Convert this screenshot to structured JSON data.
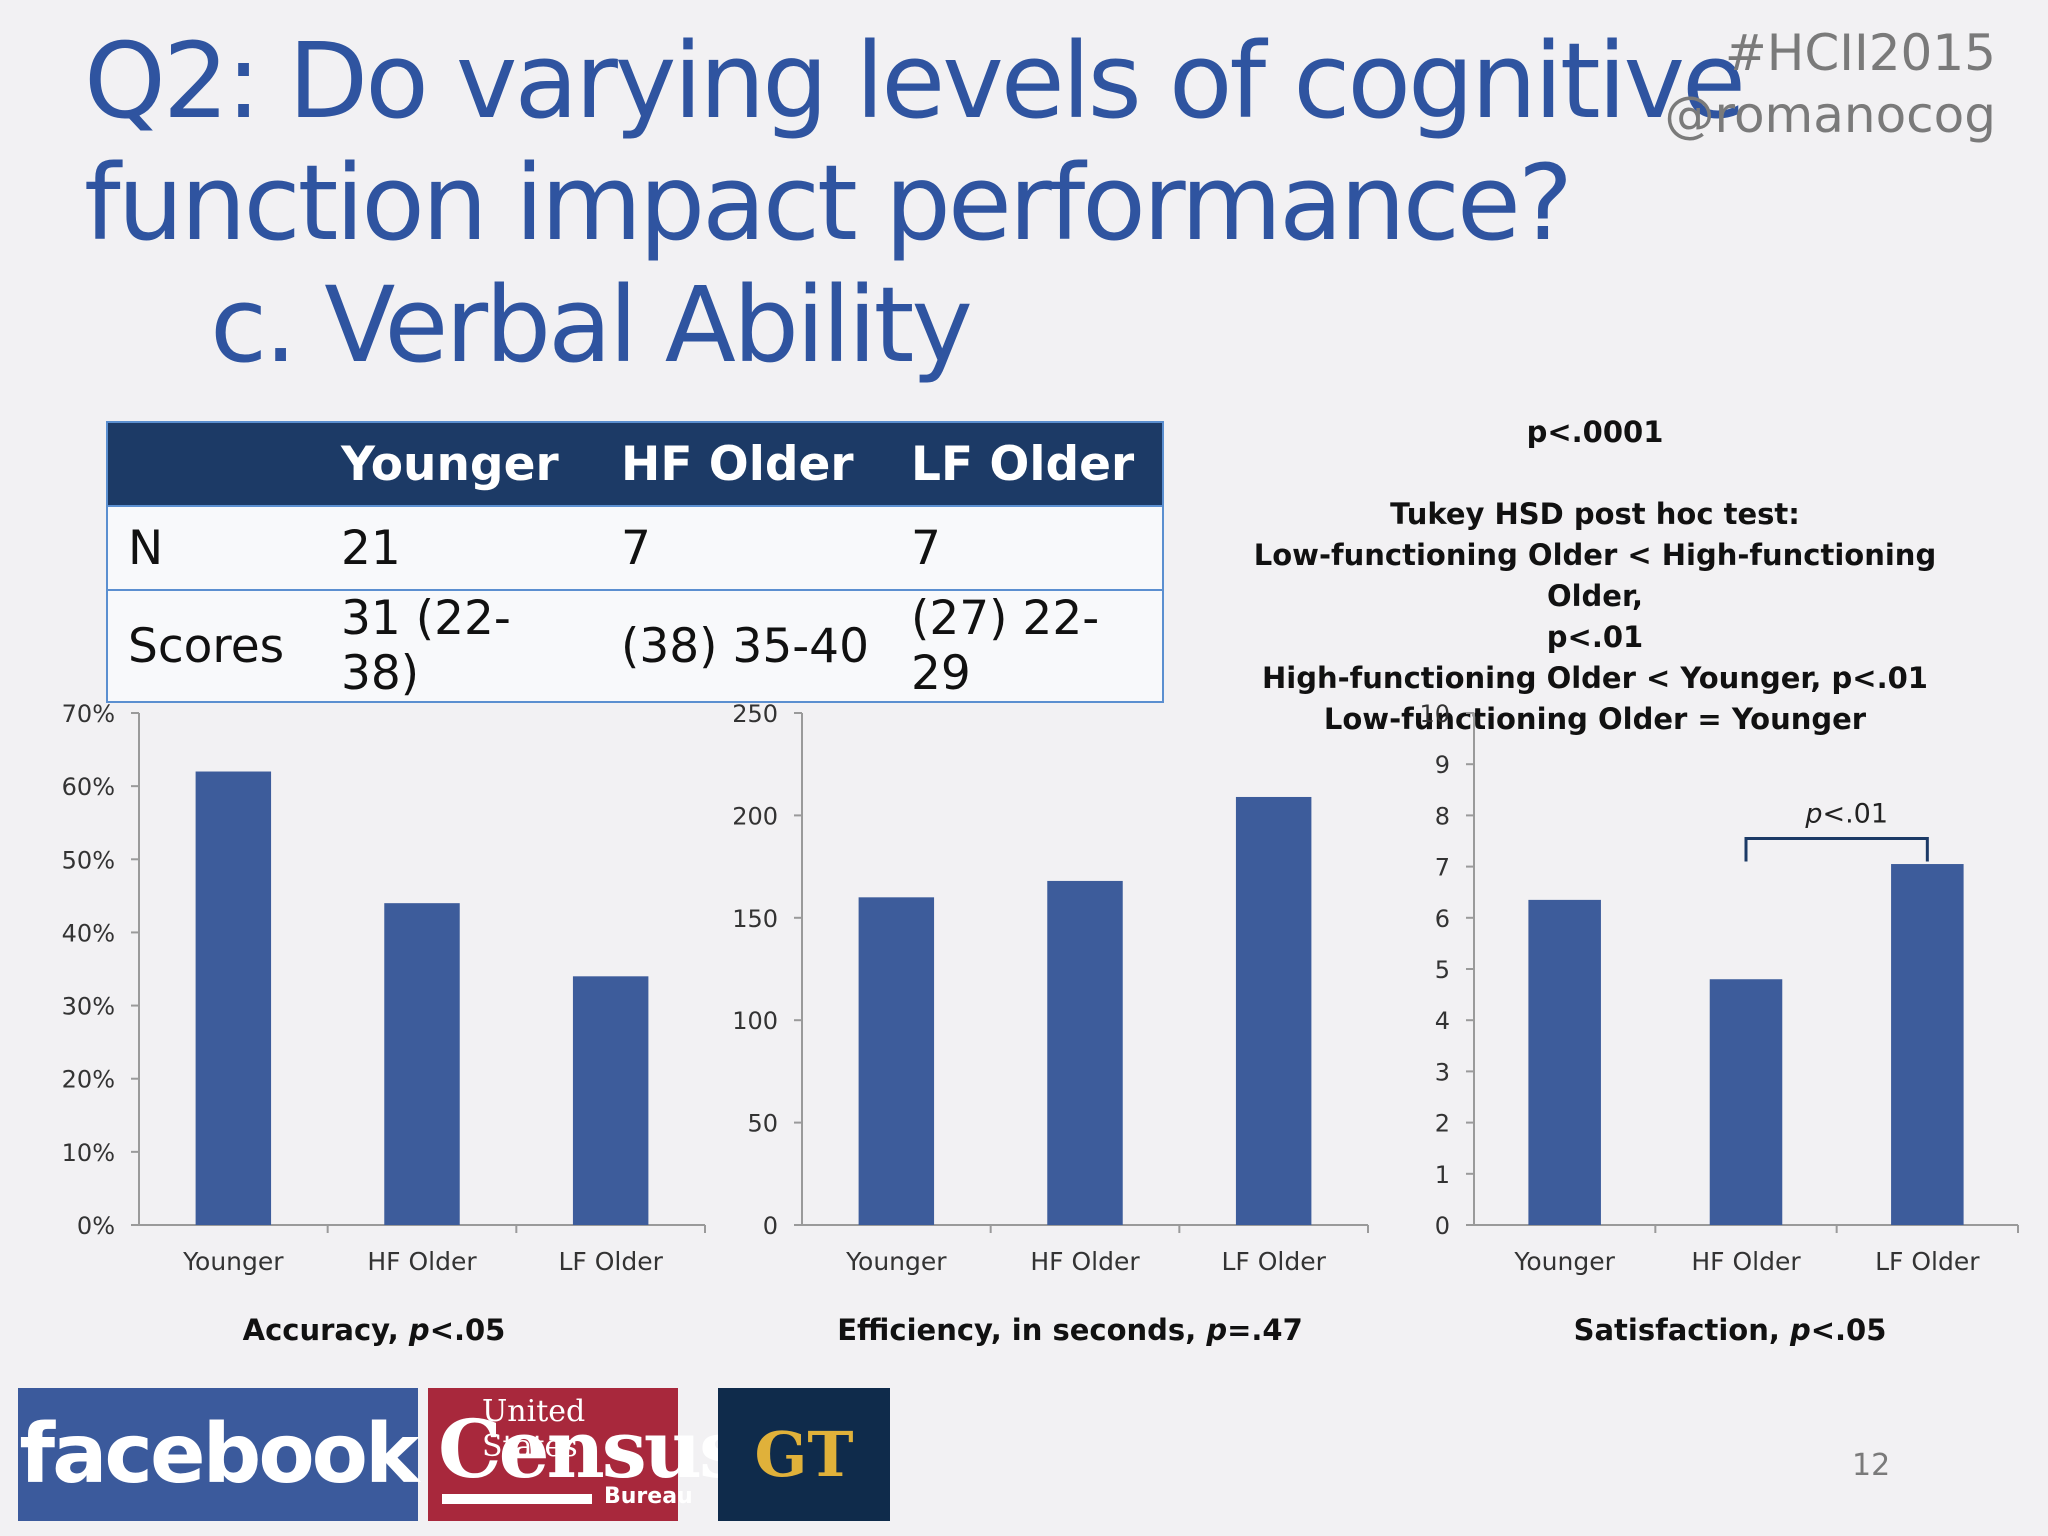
{
  "header": {
    "title_line1": "Q2: Do varying levels of cognitive",
    "title_line2": "function impact performance?",
    "subtitle": "c. Verbal Ability",
    "hashtag": "#HCII2015",
    "handle": "@romanocog"
  },
  "table": {
    "headers": [
      "",
      "Younger",
      "HF Older",
      "LF Older"
    ],
    "rows": [
      [
        "N",
        "21",
        "7",
        "7"
      ],
      [
        "Scores",
        "31 (22-38)",
        "(38) 35-40",
        "(27) 22-29"
      ]
    ]
  },
  "stats_note": {
    "p_value": "p<.0001",
    "test_title": "Tukey HSD post hoc test:",
    "line1": "Low-functioning Older < High-functioning Older,",
    "line2": "p<.01",
    "line3": "High-functioning Older < Younger, p<.01",
    "line4": "Low-functioning Older = Younger"
  },
  "colors": {
    "bar": "#3d5c9b",
    "title": "#2f54a0",
    "table_header": "#1c3a66"
  },
  "chart_data": [
    {
      "type": "bar",
      "categories": [
        "Younger",
        "HF Older",
        "LF Older"
      ],
      "values": [
        0.62,
        0.44,
        0.34
      ],
      "ylim": [
        0,
        0.7
      ],
      "ticks": [
        "0%",
        "10%",
        "20%",
        "30%",
        "40%",
        "50%",
        "60%",
        "70%"
      ],
      "title": "Accuracy, p<.05"
    },
    {
      "type": "bar",
      "categories": [
        "Younger",
        "HF Older",
        "LF Older"
      ],
      "values": [
        160,
        168,
        209
      ],
      "ylim": [
        0,
        250
      ],
      "ticks": [
        "0",
        "50",
        "100",
        "150",
        "200",
        "250"
      ],
      "title": "Efficiency, in seconds, p=.47"
    },
    {
      "type": "bar",
      "categories": [
        "Younger",
        "HF Older",
        "LF Older"
      ],
      "values": [
        6.35,
        4.8,
        7.05
      ],
      "ylim": [
        0,
        10
      ],
      "ticks": [
        "0",
        "1",
        "2",
        "3",
        "4",
        "5",
        "6",
        "7",
        "8",
        "9",
        "10"
      ],
      "title": "Satisfaction, p<.05",
      "annotation": {
        "text": "p<.01",
        "from": "HF Older",
        "to": "LF Older"
      }
    }
  ],
  "footer": {
    "logo_facebook": "facebook",
    "logo_census_top": "United States",
    "logo_census_main": "Census",
    "logo_census_bottom": "Bureau",
    "logo_gt": "GT",
    "slide_number": "12"
  }
}
